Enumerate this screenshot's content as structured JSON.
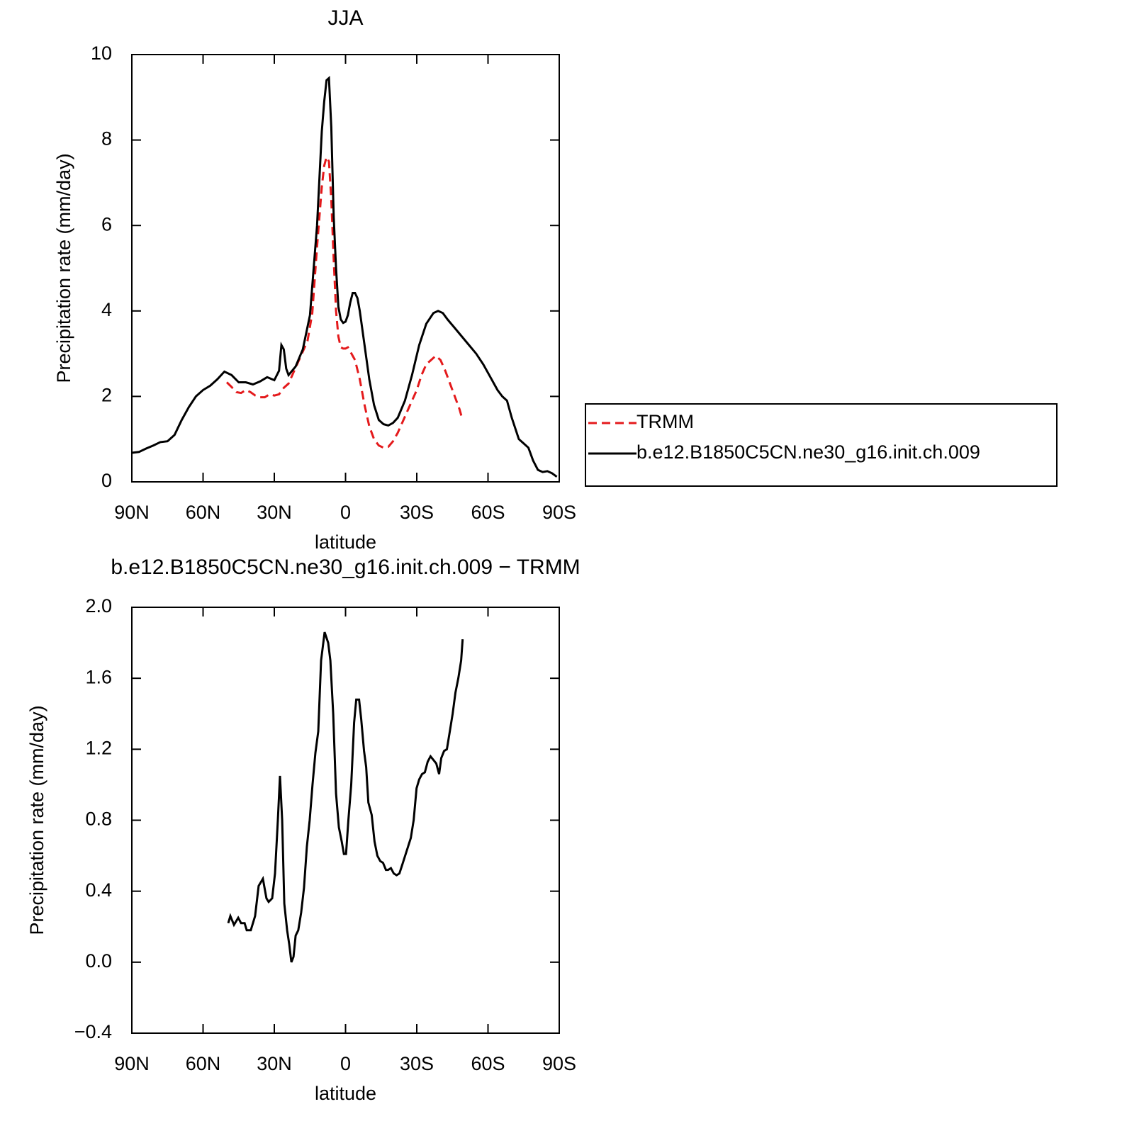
{
  "chart_data": [
    {
      "type": "line",
      "title": "JJA",
      "xlabel": "latitude",
      "ylabel": "Precipitation rate (mm/day)",
      "xlim": [
        90,
        -90
      ],
      "xticks": [
        {
          "value": 90,
          "label": "90N"
        },
        {
          "value": 60,
          "label": "60N"
        },
        {
          "value": 30,
          "label": "30N"
        },
        0,
        {
          "value": -30,
          "label": "30S"
        },
        {
          "value": -60,
          "label": "60S"
        },
        {
          "value": -90,
          "label": "90S"
        }
      ],
      "ylim": [
        0,
        10
      ],
      "yticks": [
        0,
        2,
        4,
        6,
        8,
        10
      ],
      "legend": "right",
      "series": [
        {
          "name": "TRMM",
          "color": "#e41a1c",
          "dash": "dashed",
          "x": [
            50,
            48,
            46,
            44,
            42,
            40,
            38,
            36,
            34,
            32,
            30,
            28,
            26,
            24,
            22,
            20,
            18,
            16,
            14,
            12,
            10,
            9,
            8,
            7,
            6,
            5,
            4,
            3,
            2,
            1,
            0,
            -1,
            -2,
            -4,
            -6,
            -8,
            -10,
            -12,
            -14,
            -16,
            -18,
            -20,
            -22,
            -24,
            -26,
            -28,
            -30,
            -32,
            -34,
            -36,
            -38,
            -40,
            -42,
            -44,
            -46,
            -48,
            -49
          ],
          "values": [
            2.33,
            2.22,
            2.1,
            2.08,
            2.15,
            2.1,
            2.02,
            1.98,
            1.98,
            2.05,
            2.02,
            2.05,
            2.2,
            2.3,
            2.55,
            2.8,
            3.05,
            3.3,
            3.95,
            5.5,
            6.9,
            7.4,
            7.6,
            7.5,
            6.6,
            5.2,
            4.0,
            3.4,
            3.15,
            3.12,
            3.12,
            3.15,
            3.05,
            2.85,
            2.4,
            1.8,
            1.3,
            1.0,
            0.85,
            0.8,
            0.82,
            0.95,
            1.15,
            1.4,
            1.65,
            1.9,
            2.15,
            2.5,
            2.75,
            2.85,
            2.95,
            2.85,
            2.6,
            2.3,
            2.0,
            1.7,
            1.5
          ]
        },
        {
          "name": "b.e12.B1850C5CN.ne30_g16.init.ch.009",
          "color": "#000000",
          "dash": "solid",
          "x": [
            90,
            87,
            84,
            81,
            78,
            75,
            72,
            69,
            66,
            63,
            60,
            57,
            54,
            51,
            48,
            45,
            42,
            39,
            36,
            33,
            30,
            28,
            27,
            26,
            25,
            24,
            21,
            18,
            15,
            12,
            10,
            9,
            8,
            7,
            6,
            5,
            4,
            3,
            2,
            1,
            0,
            -1,
            -2,
            -3,
            -4,
            -5,
            -6,
            -8,
            -10,
            -12,
            -14,
            -16,
            -18,
            -20,
            -22,
            -25,
            -28,
            -31,
            -34,
            -37,
            -39,
            -41,
            -43,
            -46,
            -49,
            -52,
            -55,
            -58,
            -61,
            -64,
            -66,
            -68,
            -70,
            -73,
            -75,
            -77,
            -79,
            -81,
            -83,
            -85,
            -87,
            -89
          ],
          "values": [
            0.68,
            0.7,
            0.78,
            0.85,
            0.93,
            0.95,
            1.1,
            1.45,
            1.75,
            2.0,
            2.15,
            2.25,
            2.4,
            2.58,
            2.5,
            2.33,
            2.33,
            2.28,
            2.35,
            2.45,
            2.38,
            2.6,
            3.2,
            3.1,
            2.65,
            2.5,
            2.7,
            3.1,
            3.9,
            6.0,
            8.2,
            8.9,
            9.4,
            9.45,
            8.3,
            6.2,
            5.0,
            4.1,
            3.8,
            3.72,
            3.75,
            3.9,
            4.2,
            4.42,
            4.42,
            4.3,
            4.0,
            3.2,
            2.4,
            1.8,
            1.45,
            1.35,
            1.32,
            1.38,
            1.5,
            1.9,
            2.5,
            3.2,
            3.7,
            3.95,
            4.0,
            3.95,
            3.8,
            3.6,
            3.4,
            3.2,
            3.0,
            2.75,
            2.45,
            2.15,
            2.0,
            1.9,
            1.5,
            1.0,
            0.9,
            0.8,
            0.5,
            0.28,
            0.23,
            0.25,
            0.2,
            0.12
          ]
        }
      ]
    },
    {
      "type": "line",
      "title": "b.e12.B1850C5CN.ne30_g16.init.ch.009 − TRMM",
      "xlabel": "latitude",
      "ylabel": "Precipitation rate (mm/day)",
      "xlim": [
        90,
        -90
      ],
      "xticks": [
        {
          "value": 90,
          "label": "90N"
        },
        {
          "value": 60,
          "label": "60N"
        },
        {
          "value": 30,
          "label": "30N"
        },
        0,
        {
          "value": -30,
          "label": "30S"
        },
        {
          "value": -60,
          "label": "60S"
        },
        {
          "value": -90,
          "label": "90S"
        }
      ],
      "ylim": [
        -0.4,
        2.0
      ],
      "yticks": [
        {
          "value": -0.4,
          "label": "−0.4"
        },
        {
          "value": 0,
          "label": "0.0"
        },
        0.4,
        0.8,
        1.2,
        1.6,
        {
          "value": 2.0,
          "label": "2.0"
        }
      ],
      "series": [
        {
          "color": "#000000",
          "dash": "solid",
          "x": [
            49.4,
            48.5,
            47.0,
            45.2,
            44.0,
            42.5,
            41.6,
            39.9,
            38.1,
            36.6,
            34.8,
            33.3,
            32.4,
            30.9,
            29.7,
            28.5,
            27.6,
            26.7,
            25.8,
            24.6,
            23.7,
            22.8,
            21.9,
            21.0,
            19.9,
            18.7,
            17.5,
            16.3,
            15.1,
            13.9,
            12.7,
            11.5,
            10.3,
            8.8,
            7.3,
            6.4,
            5.2,
            4.0,
            2.8,
            1.6,
            0.7,
            -0.2,
            -1.2,
            -2.4,
            -3.6,
            -4.5,
            -5.7,
            -6.6,
            -7.8,
            -8.7,
            -9.6,
            -11.0,
            -12.2,
            -13.4,
            -14.6,
            -15.8,
            -17.0,
            -17.9,
            -19.1,
            -20.3,
            -21.5,
            -22.7,
            -23.9,
            -25.1,
            -26.3,
            -27.5,
            -28.7,
            -29.9,
            -31.0,
            -32.2,
            -33.4,
            -34.6,
            -35.8,
            -37.0,
            -38.2,
            -39.4,
            -40.3,
            -41.5,
            -42.7,
            -43.9,
            -45.1,
            -46.3,
            -47.5,
            -48.7,
            -49.3
          ],
          "values": [
            0.22,
            0.26,
            0.21,
            0.25,
            0.22,
            0.22,
            0.18,
            0.18,
            0.26,
            0.43,
            0.47,
            0.36,
            0.34,
            0.36,
            0.5,
            0.8,
            1.05,
            0.8,
            0.33,
            0.18,
            0.1,
            0.0,
            0.03,
            0.15,
            0.18,
            0.28,
            0.42,
            0.65,
            0.8,
            1.0,
            1.18,
            1.3,
            1.7,
            1.86,
            1.8,
            1.7,
            1.4,
            0.95,
            0.76,
            0.68,
            0.61,
            0.61,
            0.8,
            1.0,
            1.35,
            1.48,
            1.48,
            1.37,
            1.19,
            1.1,
            0.9,
            0.83,
            0.68,
            0.6,
            0.57,
            0.56,
            0.52,
            0.52,
            0.53,
            0.5,
            0.49,
            0.5,
            0.55,
            0.6,
            0.65,
            0.7,
            0.8,
            0.98,
            1.03,
            1.06,
            1.07,
            1.13,
            1.16,
            1.14,
            1.12,
            1.06,
            1.15,
            1.19,
            1.2,
            1.3,
            1.4,
            1.52,
            1.6,
            1.7,
            1.82
          ]
        }
      ]
    }
  ]
}
